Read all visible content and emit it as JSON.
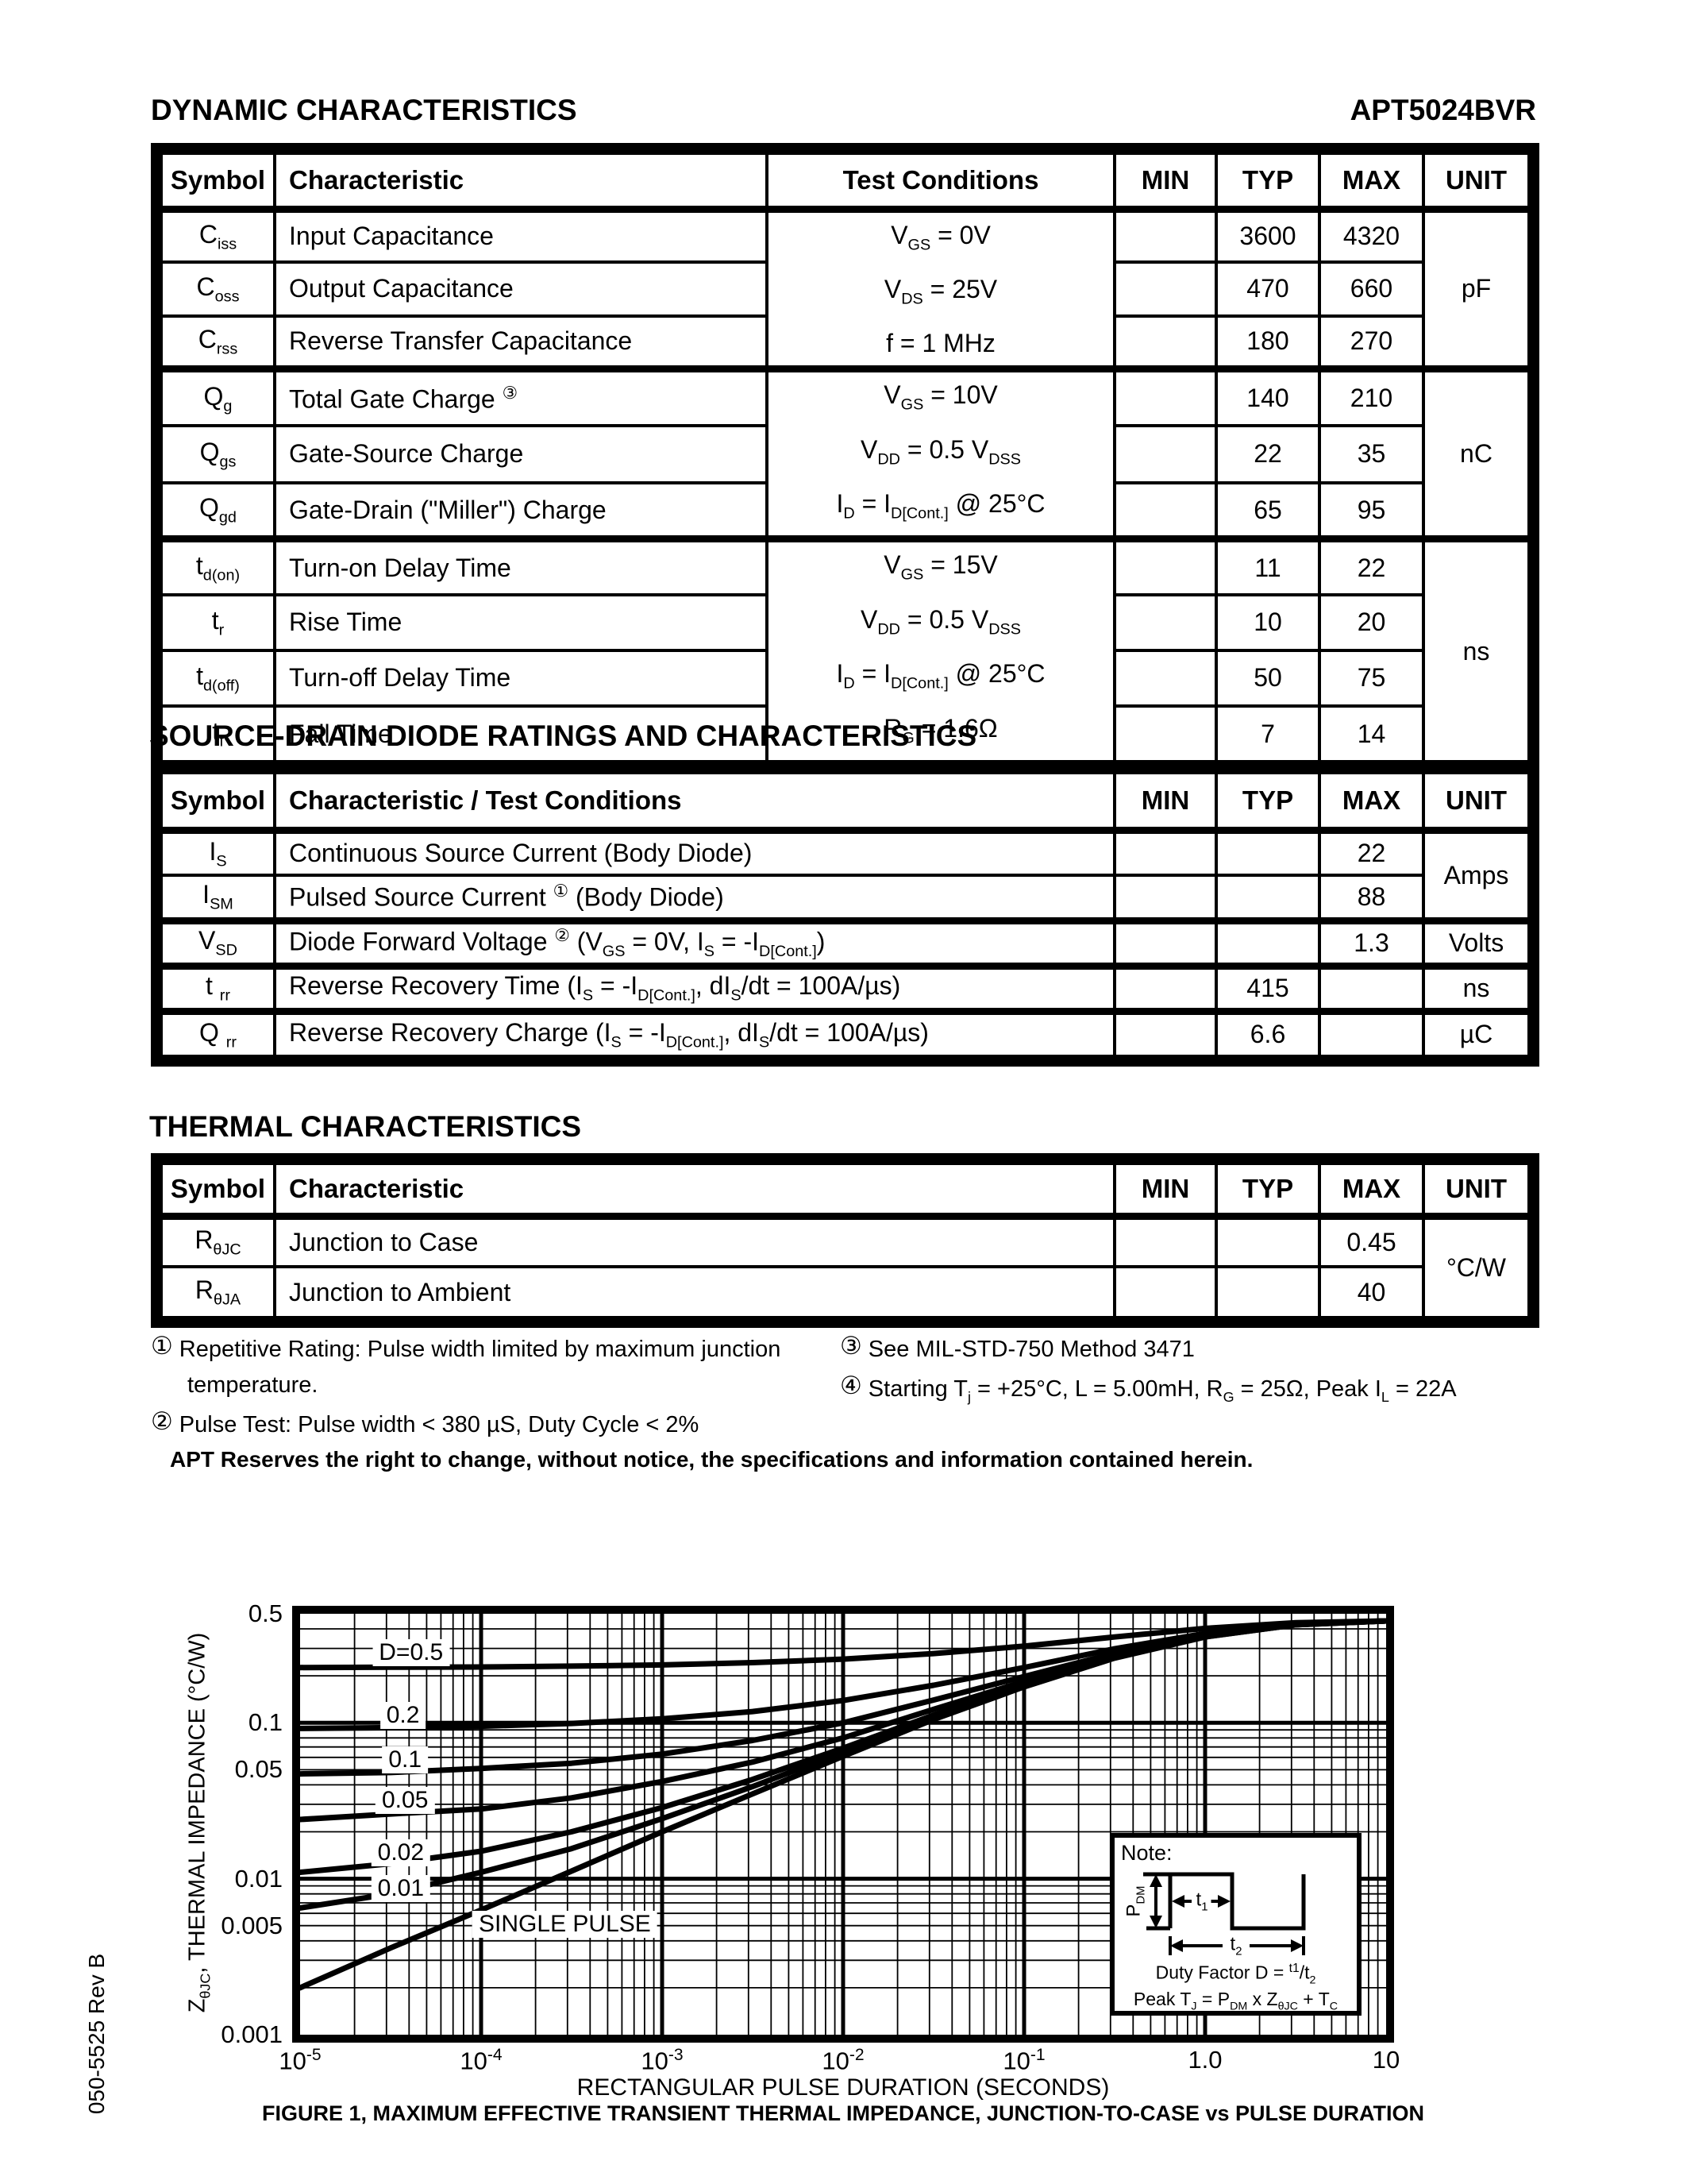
{
  "page": {
    "header_left": "DYNAMIC CHARACTERISTICS",
    "header_right": "APT5024BVR",
    "section2_title": "SOURCE-DRAIN DIODE RATINGS AND CHARACTERISTICS",
    "section3_title": "THERMAL CHARACTERISTICS",
    "side_label": "050-5525 Rev B",
    "notice": "APT Reserves the right to change, without notice, the specifications and information contained herein."
  },
  "dynamic_table": {
    "headers": [
      "Symbol",
      "Characteristic",
      "Test Conditions",
      "MIN",
      "TYP",
      "MAX",
      "UNIT"
    ],
    "groups": [
      {
        "unit": "pF",
        "conditions": [
          "V~GS~ = 0V",
          "V~DS~ = 25V",
          "f = 1 MHz"
        ],
        "rows": [
          {
            "symbol": "C~iss~",
            "characteristic": "Input Capacitance",
            "min": "",
            "typ": "3600",
            "max": "4320"
          },
          {
            "symbol": "C~oss~",
            "characteristic": "Output Capacitance",
            "min": "",
            "typ": "470",
            "max": "660"
          },
          {
            "symbol": "C~rss~",
            "characteristic": "Reverse Transfer Capacitance",
            "min": "",
            "typ": "180",
            "max": "270"
          }
        ]
      },
      {
        "unit": "nC",
        "conditions": [
          "V~GS~ = 10V",
          "V~DD~ = 0.5 V~DSS~",
          "I~D~ = I~D[Cont.]~ @ 25°C"
        ],
        "rows": [
          {
            "symbol": "Q~g~",
            "characteristic": "Total Gate Charge ^③^",
            "min": "",
            "typ": "140",
            "max": "210"
          },
          {
            "symbol": "Q~gs~",
            "characteristic": "Gate-Source Charge",
            "min": "",
            "typ": "22",
            "max": "35"
          },
          {
            "symbol": "Q~gd~",
            "characteristic": "Gate-Drain (\"Miller\") Charge",
            "min": "",
            "typ": "65",
            "max": "95"
          }
        ]
      },
      {
        "unit": "ns",
        "conditions": [
          "V~GS~ = 15V",
          "V~DD~ = 0.5 V~DSS~",
          "I~D~ = I~D[Cont.]~ @ 25°C",
          "R~G~ = 1.6Ω"
        ],
        "rows": [
          {
            "symbol": "t~d(on)~",
            "characteristic": "Turn-on Delay Time",
            "min": "",
            "typ": "11",
            "max": "22"
          },
          {
            "symbol": "t~r~",
            "characteristic": "Rise Time",
            "min": "",
            "typ": "10",
            "max": "20"
          },
          {
            "symbol": "t~d(off)~",
            "characteristic": "Turn-off Delay Time",
            "min": "",
            "typ": "50",
            "max": "75"
          },
          {
            "symbol": "t~f~",
            "characteristic": "Fall Time",
            "min": "",
            "typ": "7",
            "max": "14"
          }
        ]
      }
    ]
  },
  "diode_table": {
    "headers": [
      "Symbol",
      "Characteristic / Test Conditions",
      "MIN",
      "TYP",
      "MAX",
      "UNIT"
    ],
    "groups": [
      {
        "unit": "Amps",
        "rows": [
          {
            "symbol": "I~S~",
            "characteristic": "Continuous Source Current  (Body Diode)",
            "min": "",
            "typ": "",
            "max": "22"
          },
          {
            "symbol": "I~SM~",
            "characteristic": "Pulsed Source Current ^①^  (Body Diode)",
            "min": "",
            "typ": "",
            "max": "88"
          }
        ]
      },
      {
        "unit": "Volts",
        "rows": [
          {
            "symbol": "V~SD~",
            "characteristic": "Diode Forward Voltage ^②^ (V~GS~ = 0V, I~S~ = -I~D[Cont.]~)",
            "min": "",
            "typ": "",
            "max": "1.3"
          }
        ]
      },
      {
        "unit": "ns",
        "rows": [
          {
            "symbol": "t ~rr~",
            "characteristic": "Reverse Recovery Time  (I~S~ = -I~D[Cont.]~, dI~S~/dt = 100A/µs)",
            "min": "",
            "typ": "415",
            "max": ""
          }
        ]
      },
      {
        "unit": "µC",
        "rows": [
          {
            "symbol": "Q ~rr~",
            "characteristic": "Reverse Recovery Charge  (I~S~ = -I~D[Cont.]~, dI~S~/dt = 100A/µs)",
            "min": "",
            "typ": "6.6",
            "max": ""
          }
        ]
      }
    ]
  },
  "thermal_table": {
    "headers": [
      "Symbol",
      "Characteristic",
      "MIN",
      "TYP",
      "MAX",
      "UNIT"
    ],
    "groups": [
      {
        "unit": "°C/W",
        "rows": [
          {
            "symbol": "R~θJC~",
            "characteristic": "Junction to Case",
            "min": "",
            "typ": "",
            "max": "0.45"
          },
          {
            "symbol": "R~θJA~",
            "characteristic": "Junction to Ambient",
            "min": "",
            "typ": "",
            "max": "40"
          }
        ]
      }
    ]
  },
  "footnotes": {
    "left": [
      {
        "marker": "①",
        "text": "Repetitive Rating: Pulse width limited by maximum junction\ntemperature."
      },
      {
        "marker": "②",
        "text": "Pulse Test: Pulse width < 380 µS, Duty Cycle < 2%"
      }
    ],
    "right": [
      {
        "marker": "③",
        "text": "See MIL-STD-750 Method 3471"
      },
      {
        "marker": "④",
        "text": "Starting T~j~ = +25°C, L = 5.00mH, R~G~ = 25Ω, Peak I~L~ = 22A"
      }
    ]
  },
  "chart_data": {
    "type": "line",
    "title": "FIGURE 1, MAXIMUM EFFECTIVE TRANSIENT THERMAL IMPEDANCE, JUNCTION-TO-CASE vs PULSE DURATION",
    "xlabel": "RECTANGULAR PULSE DURATION (SECONDS)",
    "ylabel": "Z~θJC~, THERMAL IMPEDANCE (°C/W)",
    "x_scale": "log",
    "y_scale": "log",
    "xlim": [
      1e-05,
      10
    ],
    "ylim": [
      0.001,
      0.5
    ],
    "grid": true,
    "legend_position": "inline-curve-labels",
    "x_ticks": [
      {
        "v": 1e-05,
        "label": "10^-5^"
      },
      {
        "v": 0.0001,
        "label": "10^-4^"
      },
      {
        "v": 0.001,
        "label": "10^-3^"
      },
      {
        "v": 0.01,
        "label": "10^-2^"
      },
      {
        "v": 0.1,
        "label": "10^-1^"
      },
      {
        "v": 1,
        "label": "1.0"
      },
      {
        "v": 10,
        "label": "10"
      }
    ],
    "y_ticks": [
      {
        "v": 0.5,
        "label": "0.5"
      },
      {
        "v": 0.1,
        "label": "0.1"
      },
      {
        "v": 0.05,
        "label": "0.05"
      },
      {
        "v": 0.01,
        "label": "0.01"
      },
      {
        "v": 0.005,
        "label": "0.005"
      },
      {
        "v": 0.001,
        "label": "0.001"
      }
    ],
    "x": [
      1e-05,
      3.16e-05,
      0.0001,
      0.000316,
      0.001,
      0.00316,
      0.01,
      0.0316,
      0.1,
      0.316,
      1,
      3.16,
      10
    ],
    "series": [
      {
        "name": "D=0.5",
        "values": [
          0.226,
          0.227,
          0.228,
          0.231,
          0.235,
          0.243,
          0.256,
          0.278,
          0.31,
          0.355,
          0.403,
          0.438,
          0.45
        ]
      },
      {
        "name": "0.2",
        "values": [
          0.092,
          0.093,
          0.095,
          0.099,
          0.106,
          0.118,
          0.139,
          0.174,
          0.226,
          0.298,
          0.374,
          0.43,
          0.45
        ]
      },
      {
        "name": "0.1",
        "values": [
          0.047,
          0.048,
          0.051,
          0.055,
          0.063,
          0.077,
          0.1,
          0.14,
          0.198,
          0.279,
          0.365,
          0.428,
          0.45
        ]
      },
      {
        "name": "0.05",
        "values": [
          0.024,
          0.026,
          0.028,
          0.033,
          0.042,
          0.056,
          0.08,
          0.122,
          0.184,
          0.27,
          0.36,
          0.426,
          0.45
        ]
      },
      {
        "name": "0.02",
        "values": [
          0.011,
          0.0125,
          0.015,
          0.02,
          0.0286,
          0.0433,
          0.0688,
          0.112,
          0.176,
          0.264,
          0.357,
          0.4255,
          0.45
        ]
      },
      {
        "name": "0.01",
        "values": [
          0.0065,
          0.008,
          0.011,
          0.0156,
          0.0243,
          0.039,
          0.065,
          0.109,
          0.173,
          0.262,
          0.356,
          0.425,
          0.45
        ]
      },
      {
        "name": "SINGLE PULSE",
        "values": [
          0.002,
          0.0036,
          0.0063,
          0.0112,
          0.02,
          0.035,
          0.061,
          0.105,
          0.17,
          0.26,
          0.355,
          0.425,
          0.45
        ]
      }
    ],
    "curve_labels": [
      {
        "text": "D=0.5",
        "x": 4.1e-05,
        "y": 0.28
      },
      {
        "text": "0.2",
        "x": 3.7e-05,
        "y": 0.111
      },
      {
        "text": "0.1",
        "x": 3.8e-05,
        "y": 0.058
      },
      {
        "text": "0.05",
        "x": 3.8e-05,
        "y": 0.0318
      },
      {
        "text": "0.02",
        "x": 3.6e-05,
        "y": 0.0147
      },
      {
        "text": "0.01",
        "x": 3.6e-05,
        "y": 0.0087
      },
      {
        "text": "SINGLE PULSE",
        "x": 0.00029,
        "y": 0.0051
      }
    ],
    "note_box": {
      "title": "Note:",
      "pdm_label": "P~DM~",
      "t1_label": "t~1~",
      "t2_label": "t~2~",
      "duty_line": "Duty Factor  D = ^t1^/t~2~",
      "peak_line": "Peak T~J~ = P~DM~ x Z~θJC~ + T~C~"
    }
  }
}
